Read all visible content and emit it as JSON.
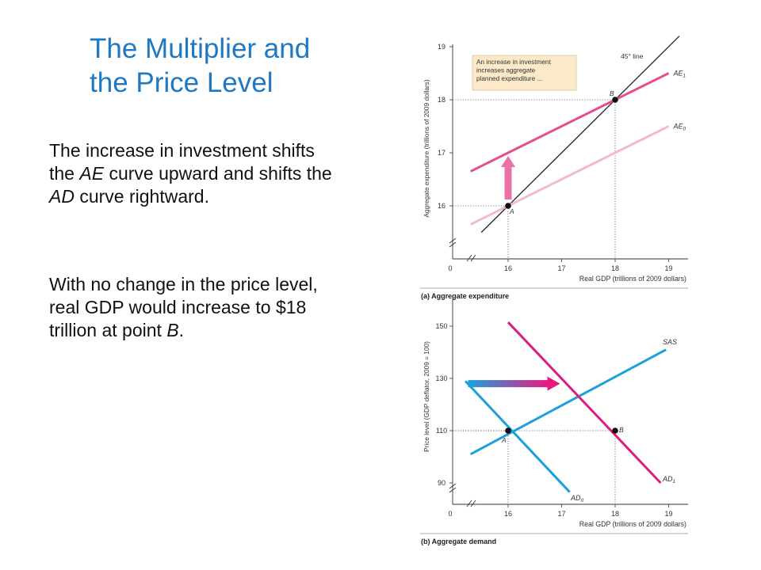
{
  "slide": {
    "title_line1": "The Multiplier and",
    "title_line2": "the Price Level",
    "para1": [
      {
        "t": "The increase in investment shifts the "
      },
      {
        "t": "AE",
        "i": true
      },
      {
        "t": " curve upward and shifts the "
      },
      {
        "t": "AD",
        "i": true
      },
      {
        "t": " curve rightward."
      }
    ],
    "para2": [
      {
        "t": "With no change in the price level, real GDP would increase to $18 trillion at point "
      },
      {
        "t": "B",
        "i": true
      },
      {
        "t": "."
      }
    ]
  },
  "chart_data": [
    {
      "type": "line",
      "panel_label": "(a) Aggregate expenditure",
      "xlabel": "Real GDP (trillions of 2009 dollars)",
      "ylabel": "Aggregate expenditure (trillions of 2009 dollars)",
      "xlim": [
        15.25,
        19.3
      ],
      "ylim": [
        15,
        19
      ],
      "xticks": [
        16,
        17,
        18,
        19
      ],
      "yticks": [
        16,
        17,
        18,
        19
      ],
      "origin_label": "0",
      "axis_breaks": true,
      "series": [
        {
          "name": "45° line",
          "color": "#222222",
          "x": [
            15.5,
            19.2
          ],
          "y": [
            15.5,
            19.2
          ]
        },
        {
          "name": "AE",
          "sub": "1",
          "color": "#e2508f",
          "x": [
            15.3,
            19.0
          ],
          "y": [
            16.65,
            18.5
          ]
        },
        {
          "name": "AE",
          "sub": "0",
          "color": "#f4b8d0",
          "x": [
            15.3,
            19.0
          ],
          "y": [
            15.65,
            17.5
          ]
        }
      ],
      "points": [
        {
          "label": "A",
          "x": 16,
          "y": 16
        },
        {
          "label": "B",
          "x": 18,
          "y": 18
        }
      ],
      "arrow": {
        "x": 16,
        "from": 16,
        "to": 17,
        "color": "#ec6fa8",
        "direction": "up"
      },
      "annotation": [
        "An increase in investment",
        "increases aggregate",
        "planned expenditure ..."
      ],
      "annotation_color": "#fce9c8"
    },
    {
      "type": "line",
      "panel_label": "(b) Aggregate demand",
      "xlabel": "Real GDP (trillions of 2009 dollars)",
      "ylabel": "Price level (GDP deflator, 2009 = 100)",
      "xlim": [
        15.25,
        19.3
      ],
      "ylim": [
        80,
        160
      ],
      "xticks": [
        16,
        17,
        18,
        19
      ],
      "yticks": [
        90,
        110,
        130,
        150
      ],
      "origin_label": "0",
      "axis_breaks": true,
      "series": [
        {
          "name": "SAS",
          "color": "#1ca0dc",
          "x": [
            15.3,
            18.95
          ],
          "y": [
            101,
            141
          ]
        },
        {
          "name": "AD",
          "sub": "0",
          "color": "#1ca0dc",
          "x": [
            15.2,
            17.15
          ],
          "y": [
            129,
            86.5
          ]
        },
        {
          "name": "AD",
          "sub": "1",
          "color": "#d91e7f",
          "x": [
            16.0,
            18.85
          ],
          "y": [
            151.5,
            90
          ]
        }
      ],
      "points": [
        {
          "label": "A",
          "x": 16,
          "y": 110
        },
        {
          "label": "B",
          "x": 18,
          "y": 110
        }
      ],
      "arrow": {
        "y": 128,
        "from": 15.4,
        "to": 17.0,
        "color_start": "#1ca0dc",
        "color_end": "#e8197f",
        "direction": "right"
      }
    }
  ]
}
